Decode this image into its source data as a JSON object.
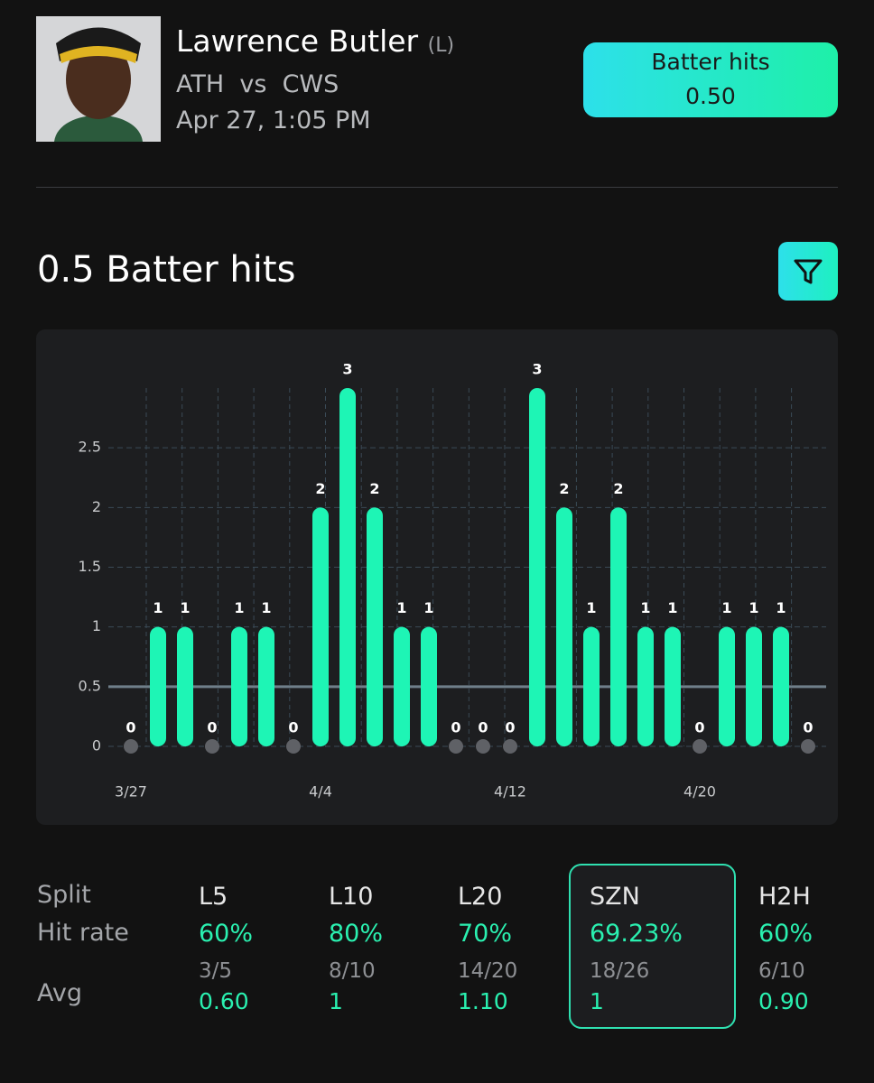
{
  "header": {
    "player": "Lawrence Butler",
    "hand": "(L)",
    "team": "ATH",
    "vs": "vs",
    "opponent": "CWS",
    "datetime": "Apr 27, 1:05 PM",
    "badge_label": "Batter hits",
    "badge_value": "0.50"
  },
  "chart_data": {
    "type": "bar",
    "title": "0.5 Batter hits",
    "categories": [
      "3/27",
      null,
      null,
      null,
      null,
      null,
      null,
      "4/4",
      null,
      null,
      null,
      null,
      null,
      null,
      "4/12",
      null,
      null,
      null,
      null,
      null,
      null,
      "4/20",
      null,
      null,
      null,
      null
    ],
    "values": [
      0,
      1,
      1,
      0,
      1,
      1,
      0,
      2,
      3,
      2,
      1,
      1,
      0,
      0,
      0,
      3,
      2,
      1,
      2,
      1,
      1,
      0,
      1,
      1,
      1,
      0
    ],
    "color": "#1ef5b5",
    "zero_color": "#5f6166",
    "threshold": 0.5,
    "ylim": [
      0,
      3
    ],
    "yticks": [
      0,
      0.5,
      1,
      1.5,
      2,
      2.5
    ],
    "grid": true
  },
  "splits": {
    "labels": [
      "Split",
      "Hit rate",
      "Avg"
    ],
    "columns": [
      {
        "name": "L5",
        "hit_rate": "60%",
        "fraction": "3/5",
        "avg": "0.60"
      },
      {
        "name": "L10",
        "hit_rate": "80%",
        "fraction": "8/10",
        "avg": "1"
      },
      {
        "name": "L20",
        "hit_rate": "70%",
        "fraction": "14/20",
        "avg": "1.10"
      },
      {
        "name": "SZN",
        "hit_rate": "69.23%",
        "fraction": "18/26",
        "avg": "1"
      },
      {
        "name": "H2H",
        "hit_rate": "60%",
        "fraction": "6/10",
        "avg": "0.90"
      }
    ]
  }
}
